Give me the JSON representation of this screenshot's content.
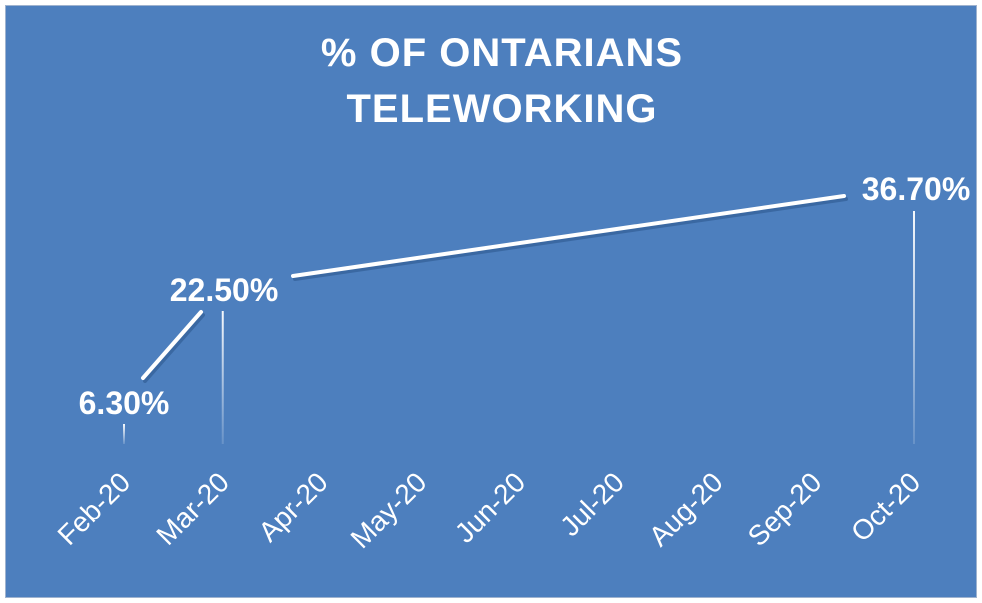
{
  "chart_data": {
    "type": "line",
    "title_lines": [
      "% OF ONTARIANS",
      "TELEWORKING"
    ],
    "categories": [
      "Feb-20",
      "Mar-20",
      "Apr-20",
      "May-20",
      "Jun-20",
      "Jul-20",
      "Aug-20",
      "Sep-20",
      "Oct-20"
    ],
    "series": [
      {
        "points": [
          {
            "x": "Feb-20",
            "y": 6.3,
            "label": "6.30%"
          },
          {
            "x": "Mar-20",
            "y": 22.5,
            "label": "22.50%"
          },
          {
            "x": "Oct-20",
            "y": 36.7,
            "label": "36.70%"
          }
        ]
      }
    ],
    "ylim": [
      0,
      40
    ],
    "grid": false,
    "legend": "none",
    "colors": {
      "background": "#4d7fbe",
      "line": "#ffffff",
      "text": "#ffffff"
    }
  }
}
